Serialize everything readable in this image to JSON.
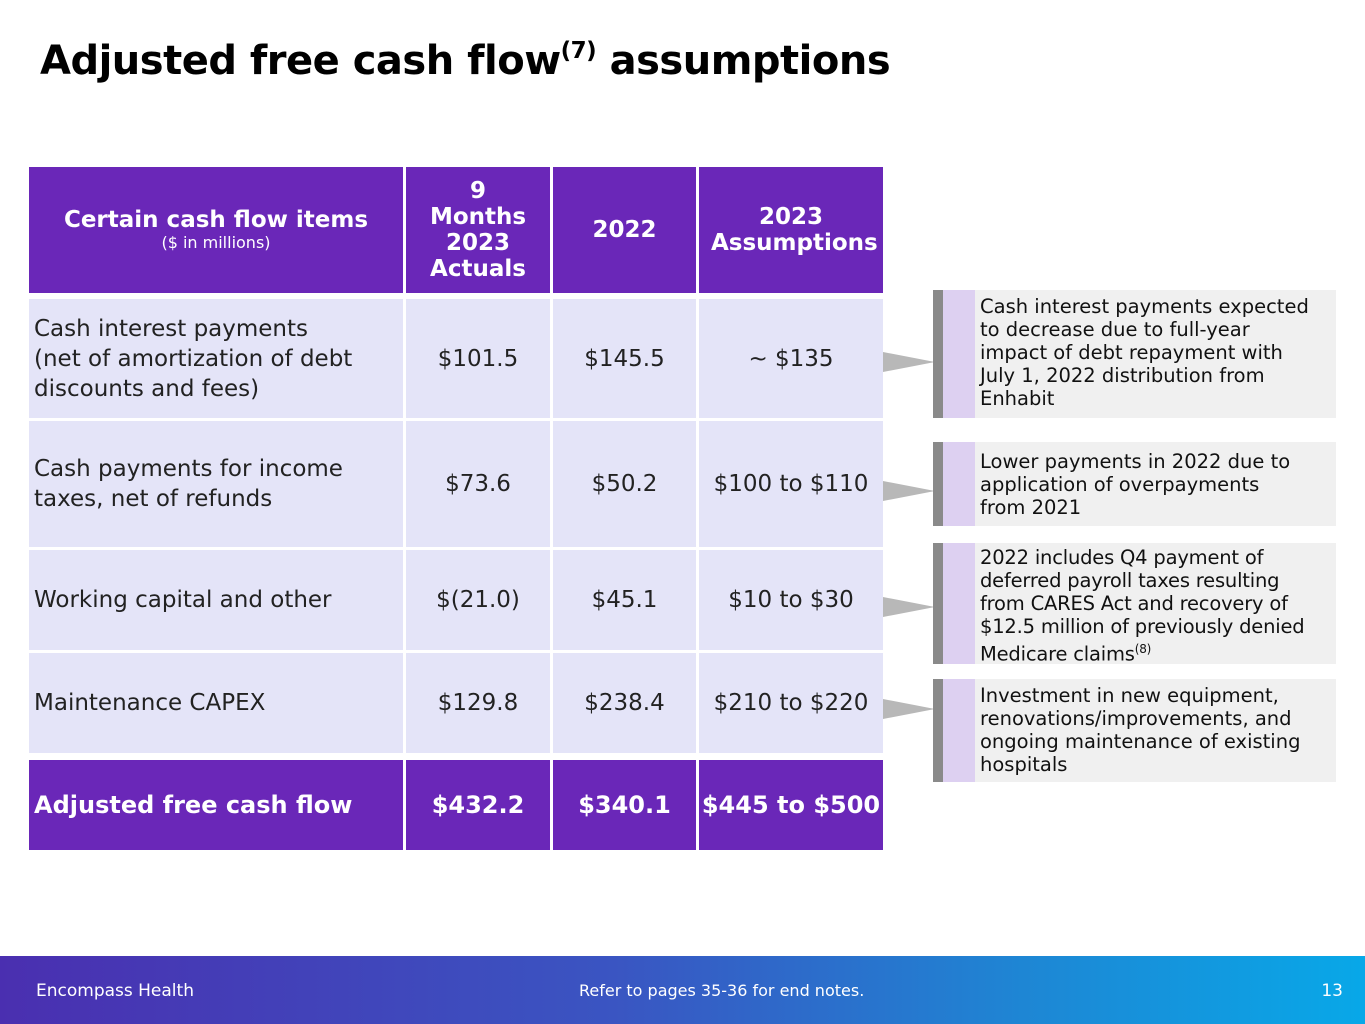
{
  "title": {
    "main": "Adjusted free cash flow",
    "sup": "(7)",
    "rest": " assumptions"
  },
  "table": {
    "headers": [
      {
        "label": "Certain cash flow items",
        "sub": "($ in millions)"
      },
      {
        "label": "9 Months 2023 Actuals"
      },
      {
        "label": "2022"
      },
      {
        "label": "2023 Assumptions"
      }
    ],
    "rows": [
      {
        "item_lines": [
          "Cash interest payments",
          "(net of amortization of debt",
          "discounts and fees)"
        ],
        "actuals_9m_2023": "$101.5",
        "y2022": "$145.5",
        "assumptions_2023": "~ $135"
      },
      {
        "item_lines": [
          "Cash payments for income",
          "taxes, net of refunds"
        ],
        "actuals_9m_2023": "$73.6",
        "y2022": "$50.2",
        "assumptions_2023": "$100 to $110"
      },
      {
        "item_lines": [
          "Working capital and other"
        ],
        "actuals_9m_2023": "$(21.0)",
        "y2022": "$45.1",
        "assumptions_2023": "$10 to $30"
      },
      {
        "item_lines": [
          "Maintenance CAPEX"
        ],
        "actuals_9m_2023": "$129.8",
        "y2022": "$238.4",
        "assumptions_2023": "$210 to $220"
      }
    ],
    "total": {
      "item": "Adjusted free cash flow",
      "actuals_9m_2023": "$432.2",
      "y2022": "$340.1",
      "assumptions_2023": "$445 to $500"
    }
  },
  "notes": [
    {
      "lines": [
        "Cash interest payments expected",
        "to decrease due to full-year",
        "impact of debt repayment with",
        "July 1, 2022 distribution from",
        "Enhabit"
      ]
    },
    {
      "lines": [
        "Lower payments in 2022 due to",
        "application of overpayments",
        "from 2021"
      ]
    },
    {
      "lines": [
        "2022 includes Q4 payment of",
        "deferred payroll taxes resulting",
        "from CARES Act and recovery of",
        "$12.5 million of previously denied",
        "Medicare claims"
      ],
      "sup": "(8)"
    },
    {
      "lines": [
        "Investment in new equipment,",
        "renovations/improvements, and",
        "ongoing maintenance of existing",
        "hospitals"
      ]
    }
  ],
  "footer": {
    "company": "Encompass Health",
    "refer": "Refer to pages 35-36 for end notes.",
    "page": "13"
  },
  "colors": {
    "header_purple": "#6a27b8",
    "row_lavender": "#e4e4f8",
    "note_bg": "#f0f0f0",
    "note_bar_gray": "#8a8a8a",
    "note_bar_lilac": "#ddd0f1",
    "arrow_gray": "#b8b8b8"
  }
}
